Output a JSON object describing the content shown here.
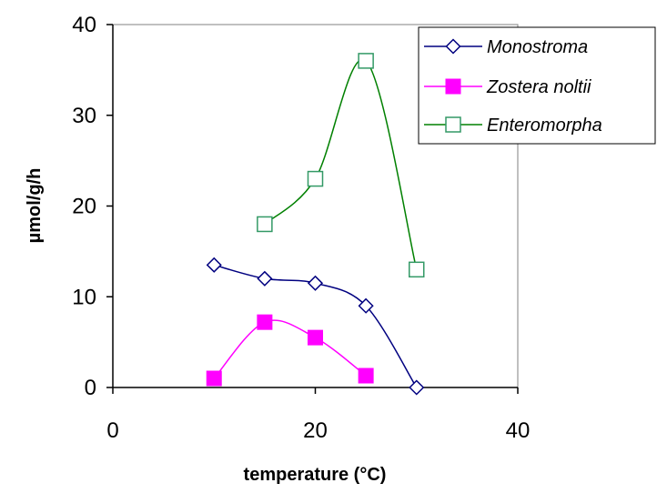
{
  "chart_data": {
    "type": "line",
    "title": "",
    "xlabel": "temperature (°C)",
    "ylabel": "µmol/g/h",
    "xlim": [
      0,
      40
    ],
    "ylim": [
      0,
      40
    ],
    "xticks": [
      0,
      20,
      40
    ],
    "yticks": [
      0,
      10,
      20,
      30,
      40
    ],
    "grid": false,
    "legend_position": "top-right",
    "series": [
      {
        "name": "Monostroma",
        "color": "#000080",
        "marker": "diamond-open",
        "x": [
          10,
          15,
          20,
          25,
          30
        ],
        "y": [
          13.5,
          12,
          11.5,
          9,
          0
        ]
      },
      {
        "name": "Zostera noltii",
        "color": "#ff00ff",
        "marker": "square-filled",
        "x": [
          10,
          15,
          20,
          25
        ],
        "y": [
          1,
          7.2,
          5.5,
          1.3
        ]
      },
      {
        "name": "Enteromorpha",
        "color": "#008000",
        "marker": "square-open",
        "marker_color": "#339966",
        "x": [
          15,
          20,
          25,
          30
        ],
        "y": [
          18,
          23,
          36,
          13
        ]
      }
    ]
  }
}
